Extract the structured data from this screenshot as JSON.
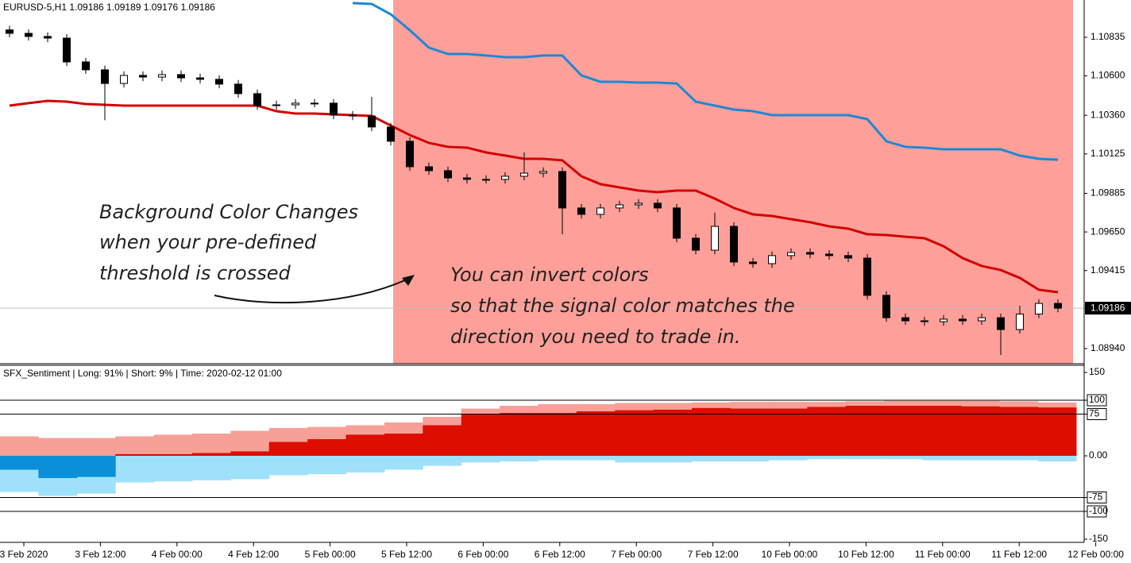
{
  "chart_data": [
    {
      "type": "candlestick",
      "title": "EURUSD-5,H1  1.09186 1.09189 1.09176 1.09186",
      "ylim": [
        1.08848,
        1.11062
      ],
      "yticks": [
        1.10835,
        {
          "value": 1.106,
          "label": "1.10600"
        },
        {
          "value": 1.1036,
          "label": "1.10360"
        },
        1.10125,
        1.09885,
        {
          "value": 1.0965,
          "label": "1.09650"
        },
        1.09415,
        {
          "value": 1.0894,
          "label": "1.08940"
        }
      ],
      "current_price": 1.09186,
      "annotations": [
        "Background Color Changes",
        "when your pre-defined",
        "threshold is crossed",
        "You can invert colors",
        "so that the signal color matches the",
        "direction you need to trade in."
      ],
      "open": [
        1.1088,
        1.10859,
        1.1084,
        1.1083,
        1.10685,
        1.10637,
        1.10554,
        1.10603,
        1.10593,
        1.10608,
        1.10588,
        1.10579,
        1.1055,
        1.10492,
        1.10419,
        1.10424,
        1.10434,
        1.10434,
        1.10361,
        1.10356,
        1.10289,
        1.10202,
        1.10047,
        1.10023,
        1.09979,
        1.0997,
        1.0997,
        1.09989,
        1.10008,
        1.10018,
        1.09796,
        1.09757,
        1.09796,
        1.09815,
        1.09825,
        1.09796,
        1.09612,
        1.09539,
        1.09684,
        1.09467,
        1.09457,
        1.09506,
        1.09525,
        1.09515,
        1.09506,
        1.09491,
        1.09264,
        1.09128,
        1.09109,
        1.09104,
        1.09119,
        1.09109,
        1.09128,
        1.09056,
        1.0915,
        1.09215
      ],
      "high": [
        1.10905,
        1.10884,
        1.10865,
        1.10855,
        1.1071,
        1.10662,
        1.10628,
        1.10628,
        1.10633,
        1.10633,
        1.10613,
        1.10604,
        1.10575,
        1.10517,
        1.10449,
        1.10459,
        1.10459,
        1.10459,
        1.10386,
        1.10472,
        1.10314,
        1.10227,
        1.10072,
        1.10048,
        1.10004,
        1.09995,
        1.10014,
        1.10134,
        1.10043,
        1.10043,
        1.09821,
        1.09821,
        1.0984,
        1.0985,
        1.0985,
        1.09821,
        1.09637,
        1.09767,
        1.09709,
        1.09492,
        1.09531,
        1.0955,
        1.0955,
        1.0954,
        1.09531,
        1.09516,
        1.09289,
        1.09153,
        1.09134,
        1.09144,
        1.09144,
        1.09153,
        1.09153,
        1.092,
        1.0924,
        1.0924
      ],
      "low": [
        1.10834,
        1.10815,
        1.10805,
        1.1066,
        1.10612,
        1.1033,
        1.10529,
        1.10568,
        1.10568,
        1.10563,
        1.10554,
        1.10525,
        1.10467,
        1.10394,
        1.10394,
        1.10399,
        1.10409,
        1.10336,
        1.10331,
        1.10264,
        1.10177,
        1.10022,
        1.09998,
        1.09954,
        1.09945,
        1.09945,
        1.09945,
        1.09964,
        1.09983,
        1.09636,
        1.09732,
        1.09732,
        1.09771,
        1.0979,
        1.09771,
        1.09587,
        1.09514,
        1.09514,
        1.09442,
        1.09432,
        1.09432,
        1.09481,
        1.0949,
        1.09481,
        1.09466,
        1.09239,
        1.09103,
        1.09084,
        1.09079,
        1.09079,
        1.09084,
        1.09084,
        1.08901,
        1.09031,
        1.09125,
        1.09161
      ],
      "close": [
        1.10859,
        1.1084,
        1.1083,
        1.10685,
        1.10637,
        1.10554,
        1.10603,
        1.10593,
        1.10608,
        1.10588,
        1.10579,
        1.1055,
        1.10492,
        1.10419,
        1.10424,
        1.10434,
        1.10434,
        1.10361,
        1.10356,
        1.10289,
        1.10202,
        1.10047,
        1.10023,
        1.09979,
        1.0997,
        1.0997,
        1.09989,
        1.10008,
        1.10018,
        1.09796,
        1.09757,
        1.09796,
        1.09815,
        1.09825,
        1.09796,
        1.09612,
        1.09539,
        1.09684,
        1.09467,
        1.09457,
        1.09506,
        1.09525,
        1.09515,
        1.09506,
        1.09491,
        1.09264,
        1.09128,
        1.09109,
        1.09104,
        1.09119,
        1.09109,
        1.09128,
        1.09056,
        1.0915,
        1.09215,
        1.09186
      ],
      "lines": [
        {
          "color": "#d40000",
          "values": [
            1.10419,
            1.10434,
            1.10448,
            1.10443,
            1.10429,
            1.10424,
            1.10419,
            1.10419,
            1.10419,
            1.10419,
            1.10419,
            1.10419,
            1.10419,
            1.10419,
            1.10385,
            1.10371,
            1.10371,
            1.10366,
            1.10361,
            1.10356,
            1.10298,
            1.1024,
            1.10192,
            1.10168,
            1.10163,
            1.10134,
            1.10115,
            1.10095,
            1.10095,
            1.10086,
            1.09989,
            1.09941,
            1.09921,
            1.09902,
            1.09892,
            1.09902,
            1.09902,
            1.09853,
            1.09796,
            1.09757,
            1.09747,
            1.09728,
            1.09709,
            1.09684,
            1.0967,
            1.09636,
            1.09631,
            1.09621,
            1.09612,
            1.09563,
            1.09491,
            1.09443,
            1.09418,
            1.0937,
            1.09298,
            1.09283
          ]
        },
        {
          "color": "#1e88d6",
          "values": [
            null,
            null,
            null,
            null,
            null,
            null,
            null,
            null,
            null,
            null,
            null,
            null,
            null,
            null,
            null,
            null,
            null,
            null,
            1.11043,
            1.11038,
            1.10975,
            1.10878,
            1.10772,
            1.10733,
            1.10733,
            1.10724,
            1.10714,
            1.10714,
            1.10724,
            1.10724,
            1.10603,
            1.10564,
            1.10564,
            1.10559,
            1.10559,
            1.10554,
            1.10443,
            1.10419,
            1.10395,
            1.10385,
            1.10361,
            1.10361,
            1.10361,
            1.10361,
            1.10361,
            1.10337,
            1.10202,
            1.10168,
            1.10163,
            1.10153,
            1.10153,
            1.10153,
            1.10153,
            1.10115,
            1.10095,
            1.1009
          ]
        }
      ]
    },
    {
      "type": "step-area",
      "title": "SFX_Sentiment | Long: 91% | Short: 9% | Time: 2020-02-12 01:00",
      "ylim": [
        -155.7,
        162.9
      ],
      "yticks": [
        150,
        100,
        75,
        {
          "value": 0,
          "label": "0.00"
        },
        -75,
        -100,
        -150
      ],
      "levels": [
        100,
        75,
        -75,
        -100
      ],
      "xtick_labels": [
        "3 Feb 2020",
        "3 Feb 12:00",
        "4 Feb 00:00",
        "4 Feb 12:00",
        "5 Feb 00:00",
        "5 Feb 12:00",
        "6 Feb 00:00",
        "6 Feb 12:00",
        "7 Feb 00:00",
        "7 Feb 12:00",
        "10 Feb 00:00",
        "10 Feb 12:00",
        "11 Feb 00:00",
        "11 Feb 12:00",
        "12 Feb 00:00"
      ],
      "series": [
        {
          "color": "#f7a097",
          "values": [
            35,
            32,
            32,
            35,
            38,
            40,
            45,
            50,
            52,
            55,
            60,
            70,
            85,
            90,
            93,
            93,
            95,
            95,
            96,
            97,
            97,
            97,
            98,
            99,
            99,
            99,
            98,
            96
          ]
        },
        {
          "color": "#dd0d00",
          "values": [
            0,
            0,
            0,
            3,
            3,
            5,
            8,
            25,
            30,
            38,
            40,
            55,
            75,
            77,
            77,
            80,
            82,
            83,
            86,
            85,
            85,
            88,
            90,
            90,
            90,
            89,
            88,
            87
          ]
        },
        {
          "color": "#9fe0fb",
          "values": [
            -65,
            -72,
            -68,
            -48,
            -46,
            -44,
            -42,
            -35,
            -33,
            -30,
            -25,
            -18,
            -12,
            -10,
            -8,
            -8,
            -12,
            -12,
            -10,
            -10,
            -8,
            -6,
            -6,
            -6,
            -8,
            -8,
            -8,
            -10
          ]
        },
        {
          "color": "#0a8fd8",
          "values": [
            -25,
            -40,
            -38,
            0,
            0,
            0,
            0,
            0,
            0,
            0,
            0,
            0,
            0,
            0,
            0,
            0,
            0,
            0,
            0,
            0,
            0,
            0,
            0,
            0,
            0,
            0,
            0,
            0
          ]
        }
      ]
    }
  ]
}
